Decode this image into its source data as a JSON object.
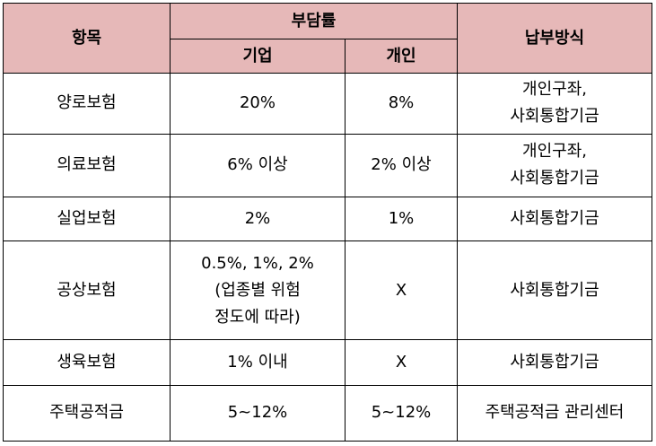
{
  "header": {
    "item": "항목",
    "burden": "부담률",
    "company": "기업",
    "individual": "개인",
    "payment": "납부방식"
  },
  "rows": [
    {
      "item": "양로보험",
      "company": [
        "20%"
      ],
      "individual": "8%",
      "payment": [
        "개인구좌,",
        "사회통합기금"
      ]
    },
    {
      "item": "의료보험",
      "company": [
        "6% 이상"
      ],
      "individual": "2% 이상",
      "payment": [
        "개인구좌,",
        "사회통합기금"
      ]
    },
    {
      "item": "실업보험",
      "company": [
        "2%"
      ],
      "individual": "1%",
      "payment": [
        "사회통합기금"
      ]
    },
    {
      "item": "공상보험",
      "company": [
        "0.5%, 1%, 2%",
        "(업종별 위험",
        "정도에 따라)"
      ],
      "individual": "X",
      "payment": [
        "사회통합기금"
      ]
    },
    {
      "item": "생육보험",
      "company": [
        "1% 이내"
      ],
      "individual": "X",
      "payment": [
        "사회통합기금"
      ]
    },
    {
      "item": "주택공적금",
      "company": [
        "5~12%"
      ],
      "individual": "5~12%",
      "payment": [
        "주택공적금 관리센터"
      ]
    }
  ]
}
